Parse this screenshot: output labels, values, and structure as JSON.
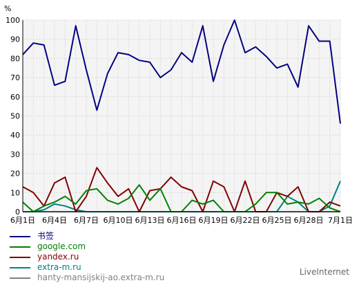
{
  "chart_data": {
    "type": "line",
    "ylabel": "%",
    "ylim": [
      0,
      100
    ],
    "yticks": [
      0,
      10,
      20,
      30,
      40,
      50,
      60,
      70,
      80,
      90,
      100
    ],
    "grid": true,
    "x": [
      "6月1日",
      "6月2日",
      "6月3日",
      "6月4日",
      "6月5日",
      "6月6日",
      "6月7日",
      "6月8日",
      "6月9日",
      "6月10日",
      "6月11日",
      "6月12日",
      "6月13日",
      "6月14日",
      "6月15日",
      "6月16日",
      "6月17日",
      "6月18日",
      "6月19日",
      "6月20日",
      "6月21日",
      "6月22日",
      "6月23日",
      "6月24日",
      "6月25日",
      "6月26日",
      "6月27日",
      "6月28日",
      "6月29日",
      "6月30日",
      "7月1日"
    ],
    "xtick_labels": [
      "6月1日",
      "6月4日",
      "6月7日",
      "6月10日",
      "6月13日",
      "6月16日",
      "6月19日",
      "6月22日",
      "6月25日",
      "6月28日",
      "7月1日"
    ],
    "series": [
      {
        "name": "书签",
        "color": "#000080",
        "values": [
          82,
          88,
          87,
          66,
          68,
          97,
          74,
          53,
          72,
          83,
          82,
          79,
          78,
          70,
          74,
          83,
          78,
          97,
          68,
          87,
          100,
          83,
          86,
          81,
          75,
          77,
          65,
          97,
          89,
          89,
          46
        ]
      },
      {
        "name": "google.com",
        "color": "#008000",
        "values": [
          5,
          0,
          3,
          5,
          8,
          4,
          11,
          12,
          6,
          4,
          7,
          14,
          6,
          12,
          0,
          0,
          6,
          4,
          6,
          0,
          0,
          0,
          4,
          10,
          10,
          4,
          5,
          4,
          7,
          2,
          0
        ]
      },
      {
        "name": "yandex.ru",
        "color": "#800000",
        "values": [
          13,
          10,
          3,
          15,
          18,
          0,
          8,
          23,
          15,
          8,
          12,
          0,
          11,
          12,
          18,
          13,
          11,
          0,
          16,
          13,
          0,
          16,
          0,
          0,
          10,
          8,
          13,
          0,
          0,
          5,
          3
        ]
      },
      {
        "name": "extra-m.ru",
        "color": "#008080",
        "values": [
          0,
          0,
          1,
          4,
          3,
          1,
          0,
          0,
          0,
          0,
          0,
          0,
          0,
          0,
          0,
          0,
          0,
          0,
          0,
          0,
          0,
          0,
          0,
          0,
          0,
          8,
          5,
          0,
          0,
          3,
          16
        ]
      },
      {
        "name": "hanty-mansijskij-ao.extra-m.ru",
        "color": "#808080",
        "values": [
          0,
          0,
          0,
          0,
          0,
          0,
          0,
          0,
          0,
          0,
          0,
          0,
          0,
          0,
          0,
          0,
          0,
          0,
          0,
          0,
          0,
          0,
          0,
          0,
          0,
          0,
          0,
          0,
          0,
          0,
          0
        ]
      }
    ]
  },
  "footer": {
    "brand": "LiveInternet"
  }
}
